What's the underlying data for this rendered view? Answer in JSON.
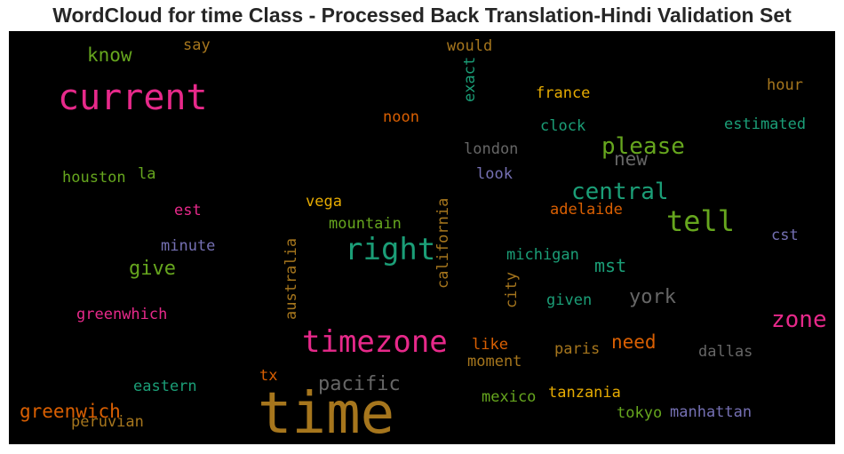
{
  "chart_data": {
    "type": "wordcloud",
    "title": "WordCloud for time Class - Processed Back Translation-Hindi Validation Set",
    "background": "#000000",
    "words": [
      {
        "text": "time",
        "color": "#a6761d"
      },
      {
        "text": "current",
        "color": "#e7298a"
      },
      {
        "text": "timezone",
        "color": "#e7298a"
      },
      {
        "text": "right",
        "color": "#1b9e77"
      },
      {
        "text": "tell",
        "color": "#66a61e"
      },
      {
        "text": "please",
        "color": "#66a61e"
      },
      {
        "text": "central",
        "color": "#1b9e77"
      },
      {
        "text": "zone",
        "color": "#e7298a"
      },
      {
        "text": "greenwich",
        "color": "#d95f02"
      },
      {
        "text": "pacific",
        "color": "#666666"
      },
      {
        "text": "give",
        "color": "#66a61e"
      },
      {
        "text": "need",
        "color": "#d95f02"
      },
      {
        "text": "york",
        "color": "#666666"
      },
      {
        "text": "new",
        "color": "#666666"
      },
      {
        "text": "know",
        "color": "#66a61e"
      },
      {
        "text": "mst",
        "color": "#1b9e77"
      },
      {
        "text": "california",
        "color": "#a6761d"
      },
      {
        "text": "australia",
        "color": "#a6761d"
      },
      {
        "text": "exact",
        "color": "#1b9e77"
      },
      {
        "text": "city",
        "color": "#a6761d"
      },
      {
        "text": "france",
        "color": "#e6ab02"
      },
      {
        "text": "estimated",
        "color": "#1b9e77"
      },
      {
        "text": "hour",
        "color": "#a6761d"
      },
      {
        "text": "clock",
        "color": "#1b9e77"
      },
      {
        "text": "noon",
        "color": "#d95f02"
      },
      {
        "text": "london",
        "color": "#666666"
      },
      {
        "text": "look",
        "color": "#7570b3"
      },
      {
        "text": "houston",
        "color": "#66a61e"
      },
      {
        "text": "la",
        "color": "#66a61e"
      },
      {
        "text": "vega",
        "color": "#e6ab02"
      },
      {
        "text": "est",
        "color": "#e7298a"
      },
      {
        "text": "mountain",
        "color": "#66a61e"
      },
      {
        "text": "adelaide",
        "color": "#d95f02"
      },
      {
        "text": "minute",
        "color": "#7570b3"
      },
      {
        "text": "cst",
        "color": "#7570b3"
      },
      {
        "text": "michigan",
        "color": "#1b9e77"
      },
      {
        "text": "given",
        "color": "#1b9e77"
      },
      {
        "text": "greenwhich",
        "color": "#e7298a"
      },
      {
        "text": "like",
        "color": "#d95f02"
      },
      {
        "text": "moment",
        "color": "#a6761d"
      },
      {
        "text": "paris",
        "color": "#a6761d"
      },
      {
        "text": "dallas",
        "color": "#666666"
      },
      {
        "text": "tx",
        "color": "#d95f02"
      },
      {
        "text": "eastern",
        "color": "#1b9e77"
      },
      {
        "text": "mexico",
        "color": "#66a61e"
      },
      {
        "text": "tanzania",
        "color": "#e6ab02"
      },
      {
        "text": "tokyo",
        "color": "#66a61e"
      },
      {
        "text": "manhattan",
        "color": "#7570b3"
      },
      {
        "text": "peruvian",
        "color": "#a6761d"
      },
      {
        "text": "say",
        "color": "#a6761d"
      },
      {
        "text": "would",
        "color": "#a6761d"
      }
    ]
  }
}
